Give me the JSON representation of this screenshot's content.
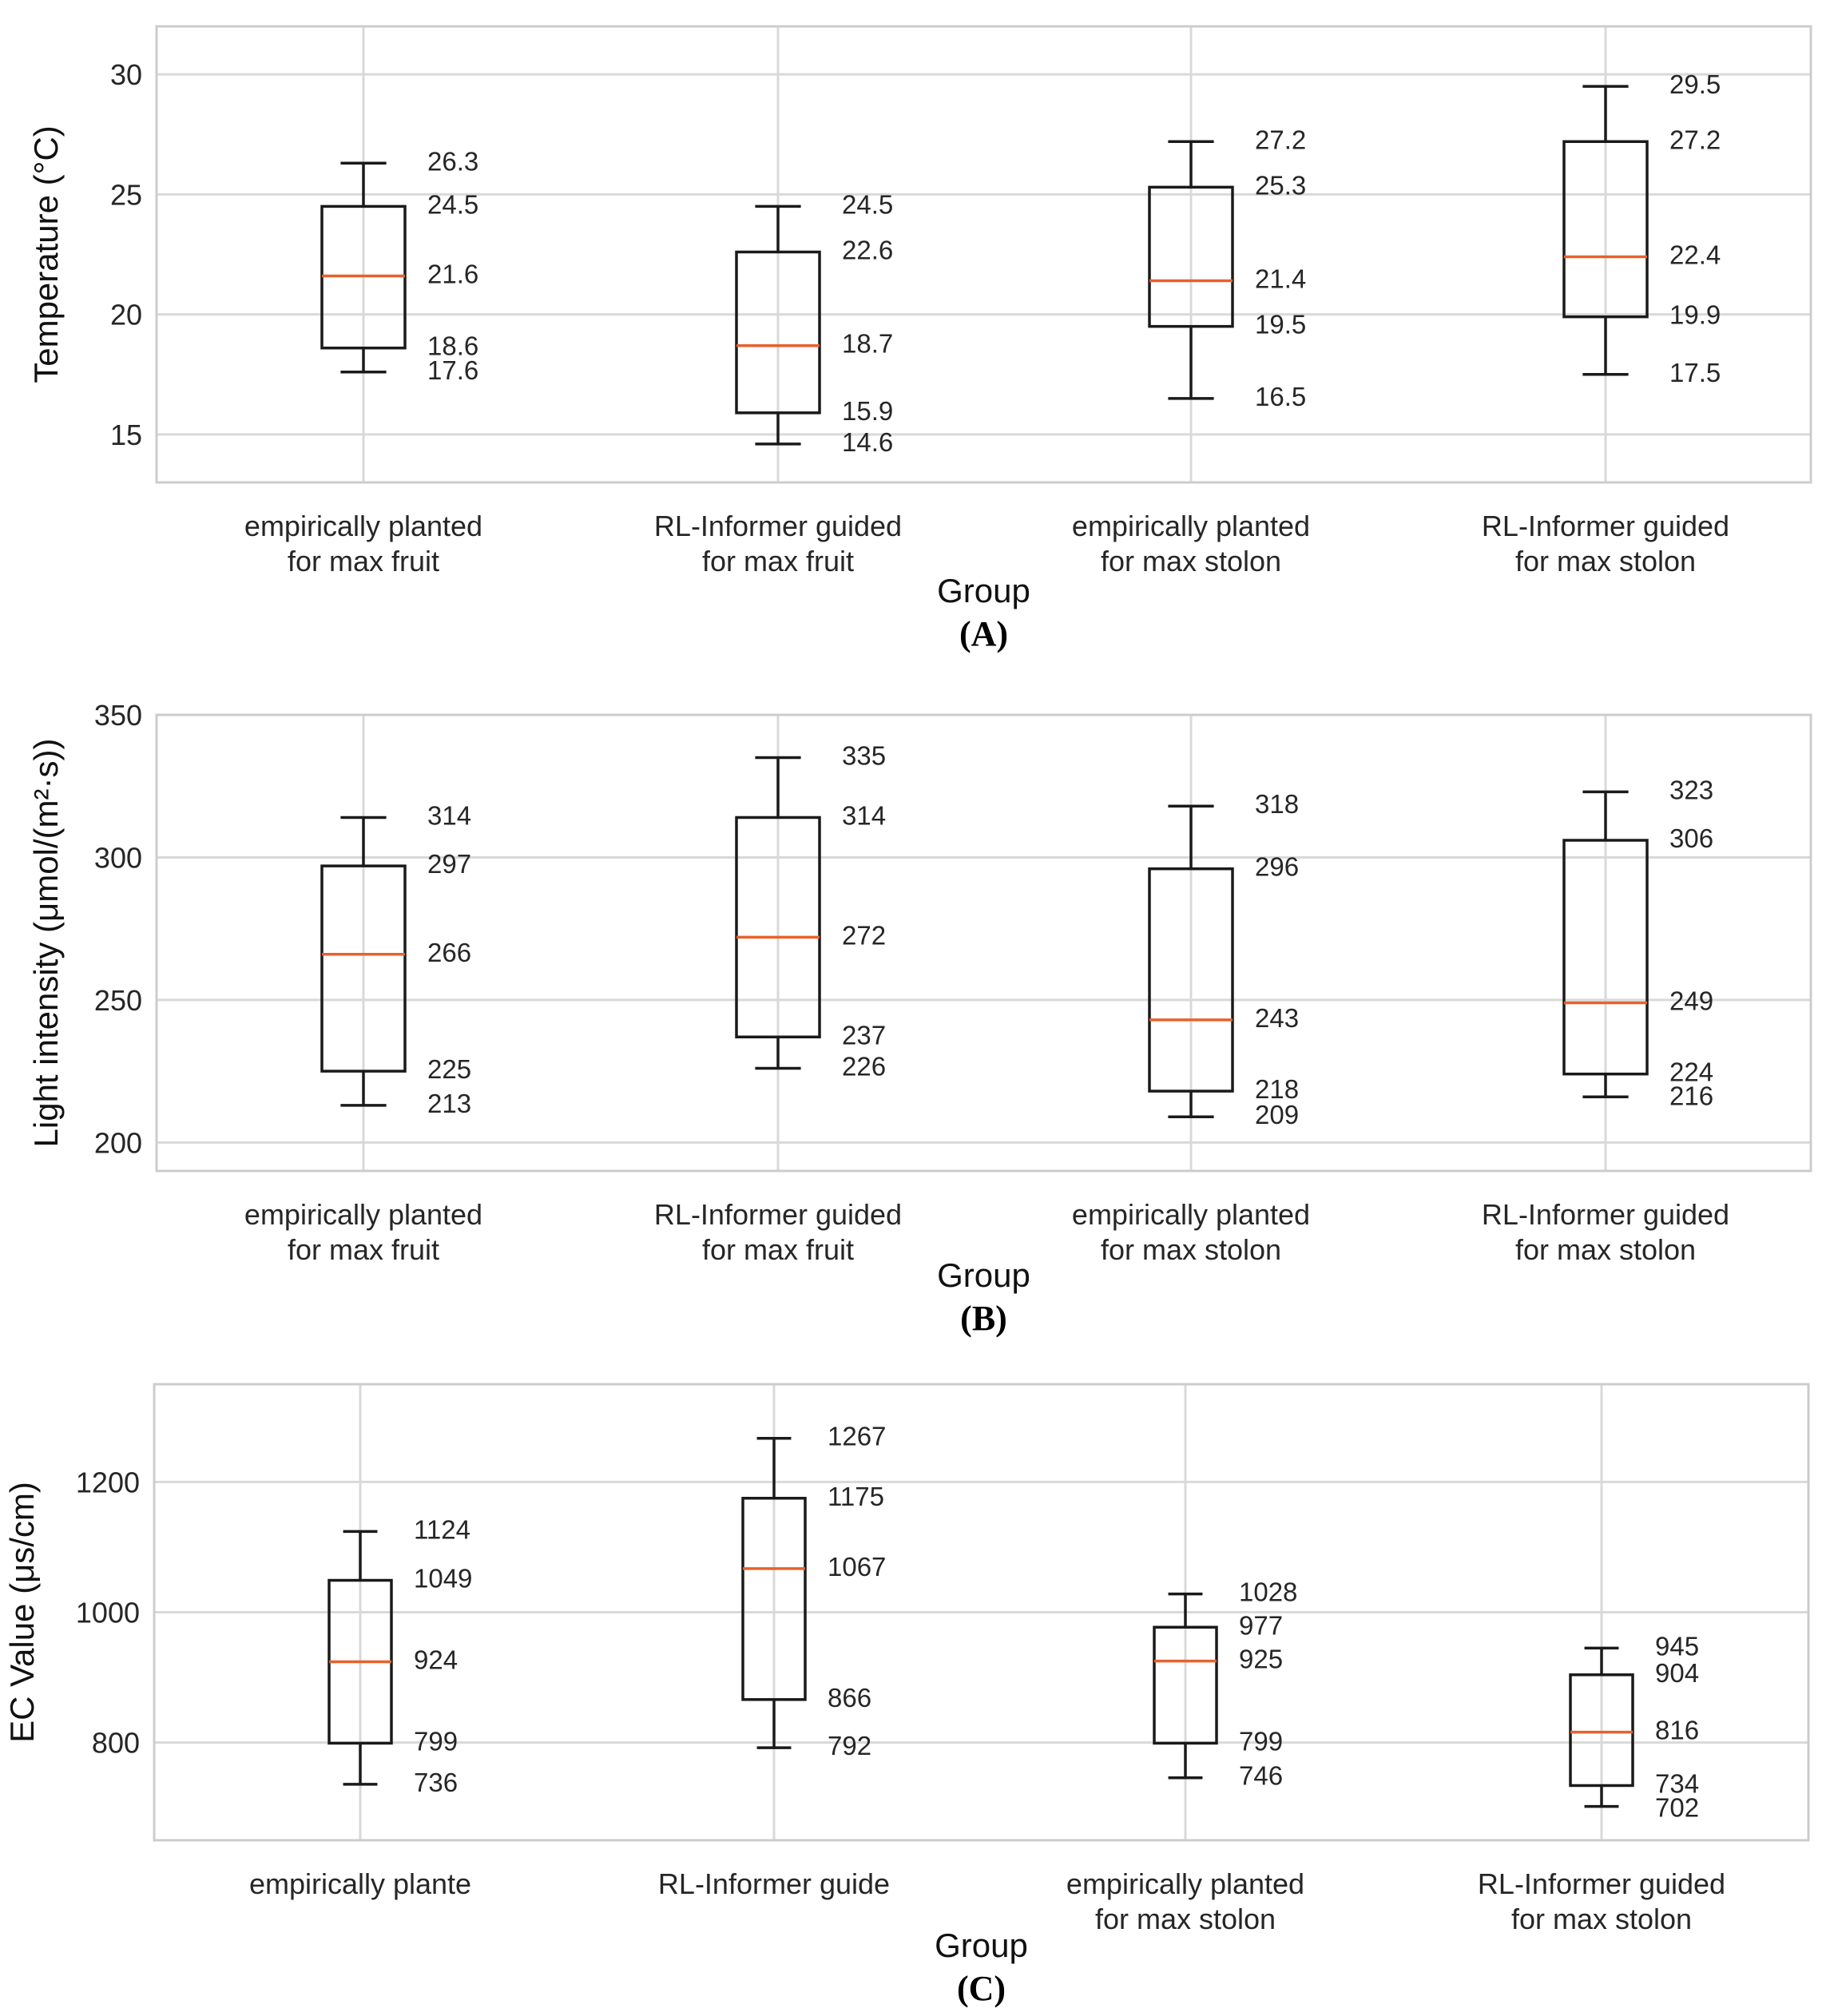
{
  "chart_data": [
    {
      "type": "box",
      "panel_label": "(A)",
      "title": "",
      "xlabel": "Group",
      "ylabel": "Temperature (°C)",
      "ylim": [
        13,
        32
      ],
      "yticks": [
        15,
        20,
        25,
        30
      ],
      "grid": true,
      "categories": [
        [
          "empirically planted",
          "for max fruit"
        ],
        [
          "RL-Informer guided",
          "for max fruit"
        ],
        [
          "empirically planted",
          "for max stolon"
        ],
        [
          "RL-Informer guided",
          "for max stolon"
        ]
      ],
      "boxes": [
        {
          "whisker_low": 17.6,
          "q1": 18.6,
          "median": 21.6,
          "q3": 24.5,
          "whisker_high": 26.3,
          "labels": [
            "26.3",
            "24.5",
            "21.6",
            "18.6",
            "17.6"
          ]
        },
        {
          "whisker_low": 14.6,
          "q1": 15.9,
          "median": 18.7,
          "q3": 22.6,
          "whisker_high": 24.5,
          "labels": [
            "24.5",
            "22.6",
            "18.7",
            "15.9",
            "14.6"
          ]
        },
        {
          "whisker_low": 16.5,
          "q1": 19.5,
          "median": 21.4,
          "q3": 25.3,
          "whisker_high": 27.2,
          "labels": [
            "27.2",
            "25.3",
            "21.4",
            "19.5",
            "16.5"
          ]
        },
        {
          "whisker_low": 17.5,
          "q1": 19.9,
          "median": 22.4,
          "q3": 27.2,
          "whisker_high": 29.5,
          "labels": [
            "29.5",
            "27.2",
            "22.4",
            "19.9",
            "17.5"
          ]
        }
      ]
    },
    {
      "type": "box",
      "panel_label": "(B)",
      "title": "",
      "xlabel": "Group",
      "ylabel": "Light intensity (μmol/(m²·s))",
      "ylim": [
        190,
        350
      ],
      "yticks": [
        200,
        250,
        300,
        350
      ],
      "grid": true,
      "categories": [
        [
          "empirically planted",
          "for max fruit"
        ],
        [
          "RL-Informer guided",
          "for max fruit"
        ],
        [
          "empirically planted",
          "for max stolon"
        ],
        [
          "RL-Informer guided",
          "for max stolon"
        ]
      ],
      "boxes": [
        {
          "whisker_low": 213,
          "q1": 225,
          "median": 266,
          "q3": 297,
          "whisker_high": 314,
          "labels": [
            "314",
            "297",
            "266",
            "225",
            "213"
          ]
        },
        {
          "whisker_low": 226,
          "q1": 237,
          "median": 272,
          "q3": 314,
          "whisker_high": 335,
          "labels": [
            "335",
            "314",
            "272",
            "237",
            "226"
          ]
        },
        {
          "whisker_low": 209,
          "q1": 218,
          "median": 243,
          "q3": 296,
          "whisker_high": 318,
          "labels": [
            "318",
            "296",
            "243",
            "218",
            "209"
          ]
        },
        {
          "whisker_low": 216,
          "q1": 224,
          "median": 249,
          "q3": 306,
          "whisker_high": 323,
          "labels": [
            "323",
            "306",
            "249",
            "224",
            "216"
          ]
        }
      ]
    },
    {
      "type": "box",
      "panel_label": "(C)",
      "title": "",
      "xlabel": "Group",
      "ylabel": "EC Value (μs/cm)",
      "ylim": [
        650,
        1350
      ],
      "yticks": [
        800,
        1000,
        1200
      ],
      "grid": true,
      "categories": [
        [
          "empirically plante"
        ],
        [
          "RL-Informer guide"
        ],
        [
          "empirically planted",
          "for max stolon"
        ],
        [
          "RL-Informer guided",
          "for max stolon"
        ]
      ],
      "boxes": [
        {
          "whisker_low": 736,
          "q1": 799,
          "median": 924,
          "q3": 1049,
          "whisker_high": 1124,
          "labels": [
            "1124",
            "1049",
            "924",
            "799",
            "736"
          ]
        },
        {
          "whisker_low": 792,
          "q1": 866,
          "median": 1067,
          "q3": 1175,
          "whisker_high": 1267,
          "labels": [
            "1267",
            "1175",
            "1067",
            "866",
            "792"
          ]
        },
        {
          "whisker_low": 746,
          "q1": 799,
          "median": 925,
          "q3": 977,
          "whisker_high": 1028,
          "labels": [
            "1028",
            "977",
            "925",
            "799",
            "746"
          ]
        },
        {
          "whisker_low": 702,
          "q1": 734,
          "median": 816,
          "q3": 904,
          "whisker_high": 945,
          "labels": [
            "945",
            "904",
            "816",
            "734",
            "702"
          ]
        }
      ]
    }
  ],
  "style": {
    "grid_color": "#d9d9d9",
    "axis_color": "#cccccc",
    "box_color": "#1a1a1a",
    "median_color": "#e8612c"
  }
}
